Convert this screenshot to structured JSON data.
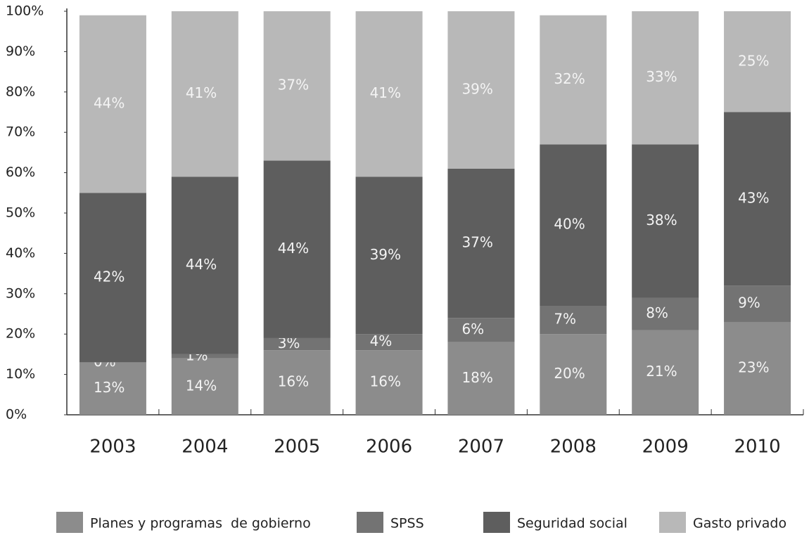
{
  "chart_data": {
    "type": "stacked_bar",
    "categories": [
      "2003",
      "2004",
      "2005",
      "2006",
      "2007",
      "2008",
      "2009",
      "2010"
    ],
    "series": [
      {
        "name": "Planes y programas  de gobierno",
        "color": "#8c8c8c",
        "values": [
          13,
          14,
          16,
          16,
          18,
          20,
          21,
          23
        ],
        "value_labels": [
          "13%",
          "14%",
          "16%",
          "16%",
          "18%",
          "20%",
          "21%",
          "23%"
        ]
      },
      {
        "name": "SPSS",
        "color": "#737373",
        "values": [
          0,
          1,
          3,
          4,
          6,
          7,
          8,
          9
        ],
        "value_labels": [
          "0%",
          "1%",
          "3%",
          "4%",
          "6%",
          "7%",
          "8%",
          "9%"
        ]
      },
      {
        "name": "Seguridad social",
        "color": "#5e5e5e",
        "values": [
          42,
          44,
          44,
          39,
          37,
          40,
          38,
          43
        ],
        "value_labels": [
          "42%",
          "44%",
          "44%",
          "39%",
          "37%",
          "40%",
          "38%",
          "43%"
        ]
      },
      {
        "name": "Gasto privado",
        "color": "#b8b8b8",
        "values": [
          44,
          41,
          37,
          41,
          39,
          32,
          33,
          25
        ],
        "value_labels": [
          "44%",
          "41%",
          "37%",
          "41%",
          "39%",
          "32%",
          "33%",
          "25%"
        ]
      }
    ],
    "ylim": [
      0,
      100
    ],
    "yticks": [
      {
        "value": 0,
        "label": "0%"
      },
      {
        "value": 10,
        "label": "10%"
      },
      {
        "value": 20,
        "label": "20%"
      },
      {
        "value": 30,
        "label": "30%"
      },
      {
        "value": 40,
        "label": "40%"
      },
      {
        "value": 50,
        "label": "50%"
      },
      {
        "value": 60,
        "label": "60%"
      },
      {
        "value": 70,
        "label": "70%"
      },
      {
        "value": 80,
        "label": "80%"
      },
      {
        "value": 90,
        "label": "90%"
      },
      {
        "value": 100,
        "label": "100%"
      }
    ],
    "grid": false,
    "legend": "bottom"
  }
}
